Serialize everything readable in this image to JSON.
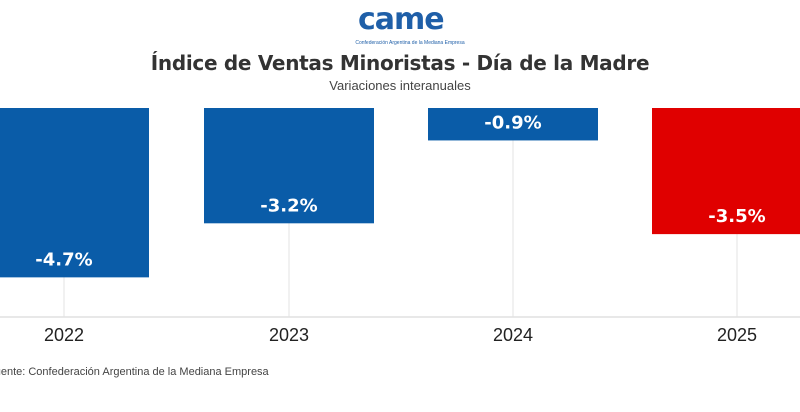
{
  "logo": {
    "mark": "came",
    "tagline": "Confederación Argentina de la Mediana Empresa"
  },
  "chart_data": {
    "type": "bar",
    "title": "Índice de Ventas Minoristas - Día de la Madre",
    "subtitle": "Variaciones interanuales",
    "categories": [
      "2022",
      "2023",
      "2024",
      "2025"
    ],
    "values": [
      -4.7,
      -3.2,
      -0.9,
      -3.5
    ],
    "labels": [
      "-4.7%",
      "-3.2%",
      "-0.9%",
      "-3.5%"
    ],
    "colors": [
      "#0a5ca8",
      "#0a5ca8",
      "#0a5ca8",
      "#e00000"
    ],
    "ylim": [
      -5.8,
      0
    ],
    "xlabel": "",
    "ylabel": "",
    "grid": true
  },
  "source": "Fuente: Confederación Argentina de la Mediana Empresa"
}
